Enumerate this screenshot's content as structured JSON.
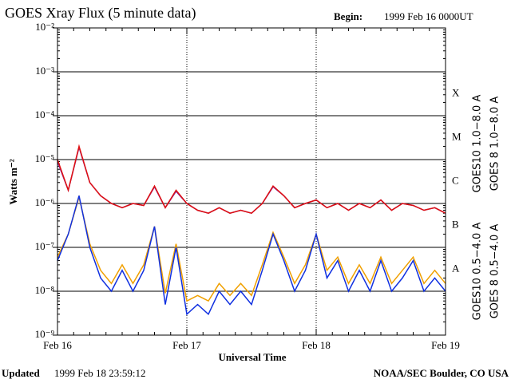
{
  "chart_data": {
    "type": "line",
    "title": "GOES Xray Flux (5 minute data)",
    "begin_label": "Begin:",
    "begin_value": "1999 Feb 16 0000UT",
    "ylabel": "Watts m⁻²",
    "xlabel": "Universal Time",
    "updated_label": "Updated",
    "updated_value": "1999 Feb 18 23:59:12",
    "credit": "NOAA/SEC Boulder, CO USA",
    "flare_classes": [
      "X",
      "M",
      "C",
      "B",
      "A"
    ],
    "log_y": true,
    "grid": true,
    "x": [
      0,
      2,
      4,
      6,
      8,
      10,
      12,
      14,
      16,
      18,
      20,
      22,
      24,
      26,
      28,
      30,
      32,
      34,
      36,
      38,
      40,
      42,
      44,
      46,
      48,
      50,
      52,
      54,
      56,
      58,
      60,
      62,
      64,
      66,
      68,
      70,
      72
    ],
    "xlim": [
      0,
      72
    ],
    "xticks": [
      {
        "value": 0,
        "label": "Feb 16"
      },
      {
        "value": 24,
        "label": "Feb 17"
      },
      {
        "value": 48,
        "label": "Feb 18"
      },
      {
        "value": 72,
        "label": "Feb 19"
      }
    ],
    "ylim": [
      1e-09,
      0.01
    ],
    "yticks": [
      {
        "value": 1e-09,
        "label": "10⁻⁹"
      },
      {
        "value": 1e-08,
        "label": "10⁻⁸"
      },
      {
        "value": 1e-07,
        "label": "10⁻⁷"
      },
      {
        "value": 1e-06,
        "label": "10⁻⁶"
      },
      {
        "value": 1e-05,
        "label": "10⁻⁵"
      },
      {
        "value": 0.0001,
        "label": "10⁻⁴"
      },
      {
        "value": 0.001,
        "label": "10⁻³"
      },
      {
        "value": 0.01,
        "label": "10⁻²"
      }
    ],
    "series": [
      {
        "name": "GOES10 1.0−8.0 A",
        "color": "#7a1fa8",
        "values": [
          9e-06,
          2e-06,
          1.9e-05,
          3e-06,
          1.5e-06,
          1e-06,
          8e-07,
          1e-06,
          9e-07,
          2.4e-06,
          8e-07,
          1.9e-06,
          1e-06,
          7e-07,
          6e-07,
          8e-07,
          6e-07,
          7e-07,
          6e-07,
          1e-06,
          2.4e-06,
          1.5e-06,
          8e-07,
          1e-06,
          1.2e-06,
          8e-07,
          1e-06,
          7e-07,
          1e-06,
          8e-07,
          1.2e-06,
          7e-07,
          1e-06,
          9e-07,
          7e-07,
          8e-07,
          6e-07
        ]
      },
      {
        "name": "GOES 8 1.0−8.0 A",
        "color": "#e01010",
        "values": [
          1e-05,
          2e-06,
          2e-05,
          3e-06,
          1.5e-06,
          1e-06,
          8e-07,
          1e-06,
          9e-07,
          2.5e-06,
          8e-07,
          2e-06,
          1e-06,
          7e-07,
          6e-07,
          8e-07,
          6e-07,
          7e-07,
          6e-07,
          1e-06,
          2.5e-06,
          1.5e-06,
          8e-07,
          1e-06,
          1.2e-06,
          8e-07,
          1e-06,
          7e-07,
          1e-06,
          8e-07,
          1.2e-06,
          7e-07,
          1e-06,
          9e-07,
          7e-07,
          8e-07,
          6e-07
        ]
      },
      {
        "name": "GOES10 0.5−4.0 A",
        "color": "#f0a000",
        "values": [
          6e-08,
          2e-07,
          1.4e-06,
          1.2e-07,
          3e-08,
          1.5e-08,
          4e-08,
          1.5e-08,
          4e-08,
          3e-07,
          9e-09,
          1.2e-07,
          6e-09,
          8e-09,
          6e-09,
          1.5e-08,
          8e-09,
          1.5e-08,
          8e-09,
          4e-08,
          2.2e-07,
          6e-08,
          1.5e-08,
          4e-08,
          2e-07,
          3e-08,
          6e-08,
          1.5e-08,
          4e-08,
          1.5e-08,
          6e-08,
          1.5e-08,
          3e-08,
          6e-08,
          1.5e-08,
          3e-08,
          1.5e-08
        ]
      },
      {
        "name": "GOES 8 0.5−4.0 A",
        "color": "#1030e0",
        "values": [
          5e-08,
          2e-07,
          1.5e-06,
          1e-07,
          2e-08,
          1e-08,
          3e-08,
          1e-08,
          3e-08,
          3e-07,
          5e-09,
          1e-07,
          3e-09,
          5e-09,
          3e-09,
          1e-08,
          5e-09,
          1e-08,
          5e-09,
          3e-08,
          2e-07,
          5e-08,
          1e-08,
          3e-08,
          2e-07,
          2e-08,
          5e-08,
          1e-08,
          3e-08,
          1e-08,
          5e-08,
          1e-08,
          2e-08,
          5e-08,
          1e-08,
          2e-08,
          1e-08
        ]
      }
    ]
  }
}
